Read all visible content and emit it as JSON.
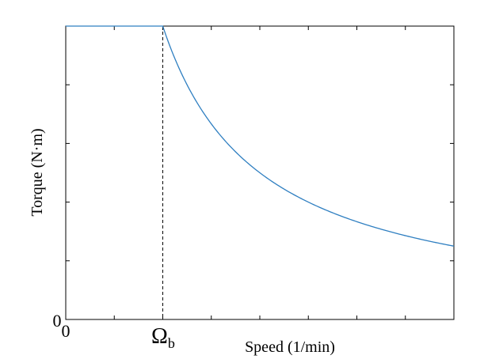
{
  "chart_data": {
    "type": "line",
    "title": "",
    "xlabel": "Speed (1/min)",
    "ylabel": "Torque (N·m)",
    "x_tick_labels": [
      "0"
    ],
    "y_tick_labels": [
      "0"
    ],
    "base_speed_label": "Ω",
    "base_speed_subscript": "b",
    "xlim": [
      0,
      4
    ],
    "ylim": [
      0,
      5
    ],
    "x_ticks": [
      0,
      0.5,
      1,
      1.5,
      2,
      2.5,
      3,
      3.5,
      4
    ],
    "y_ticks": [
      0,
      1,
      2,
      3,
      4,
      5
    ],
    "base_speed": 1,
    "grid": false,
    "legend": "none",
    "series": [
      {
        "color": "#2f7fc1",
        "x": [
          0,
          1,
          1.25,
          1.5,
          1.75,
          2,
          2.25,
          2.5,
          2.75,
          3,
          3.25,
          3.5,
          3.75,
          4
        ],
        "y": [
          5,
          5,
          4,
          3.33,
          2.86,
          2.5,
          2.22,
          2,
          1.82,
          1.67,
          1.54,
          1.43,
          1.33,
          1.25
        ]
      }
    ]
  }
}
